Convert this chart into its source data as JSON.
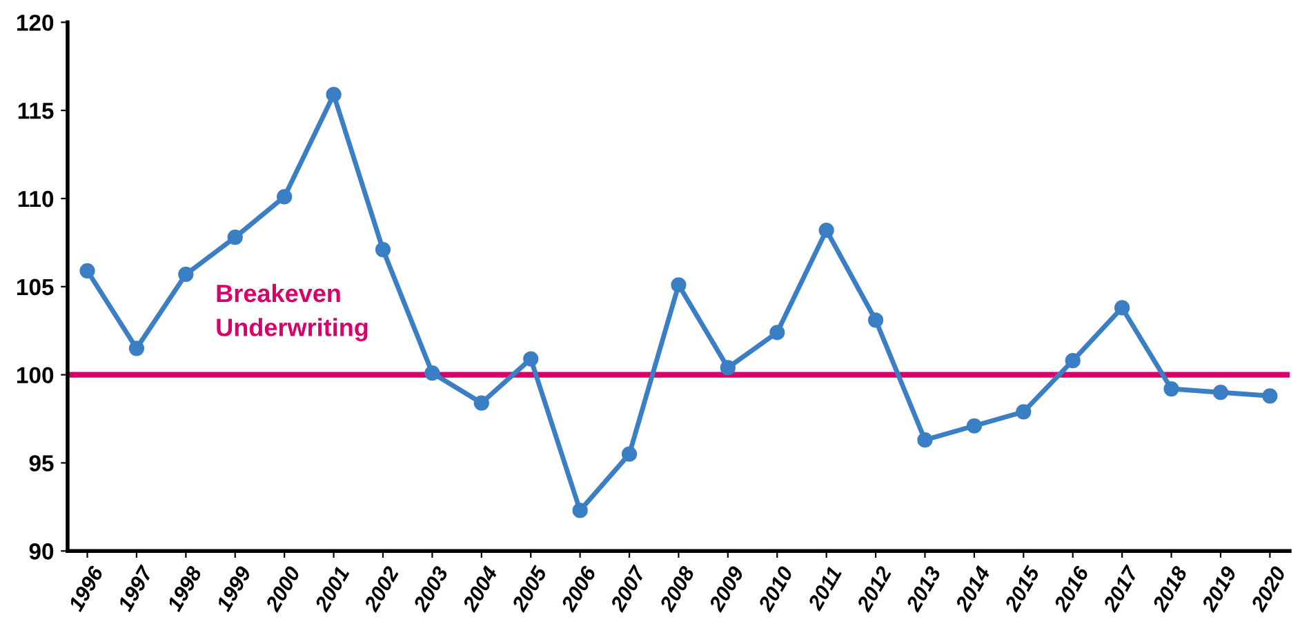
{
  "chart_data": {
    "type": "line",
    "categories": [
      "1996",
      "1997",
      "1998",
      "1999",
      "2000",
      "2001",
      "2002",
      "2003",
      "2004",
      "2005",
      "2006",
      "2007",
      "2008",
      "2009",
      "2010",
      "2011",
      "2012",
      "2013",
      "2014",
      "2015",
      "2016",
      "2017",
      "2018",
      "2019",
      "2020"
    ],
    "series": [
      {
        "color": "#3a7ec4",
        "values": [
          105.9,
          101.5,
          105.7,
          107.8,
          110.1,
          115.9,
          107.1,
          100.1,
          98.4,
          100.9,
          92.3,
          95.5,
          105.1,
          100.4,
          102.4,
          108.2,
          103.1,
          96.3,
          97.1,
          97.9,
          100.8,
          103.8,
          99.2,
          99.0,
          98.8
        ]
      }
    ],
    "ylim": [
      90,
      120
    ],
    "yticks": [
      90,
      95,
      100,
      105,
      110,
      115,
      120
    ],
    "ref_lines": [
      {
        "axis": "y",
        "value": 100,
        "label": "Breakeven\nUnderwriting",
        "color": "#d9006c",
        "line_style": "solid"
      }
    ],
    "marker": "circle",
    "line_style": "solid",
    "grid": false
  }
}
